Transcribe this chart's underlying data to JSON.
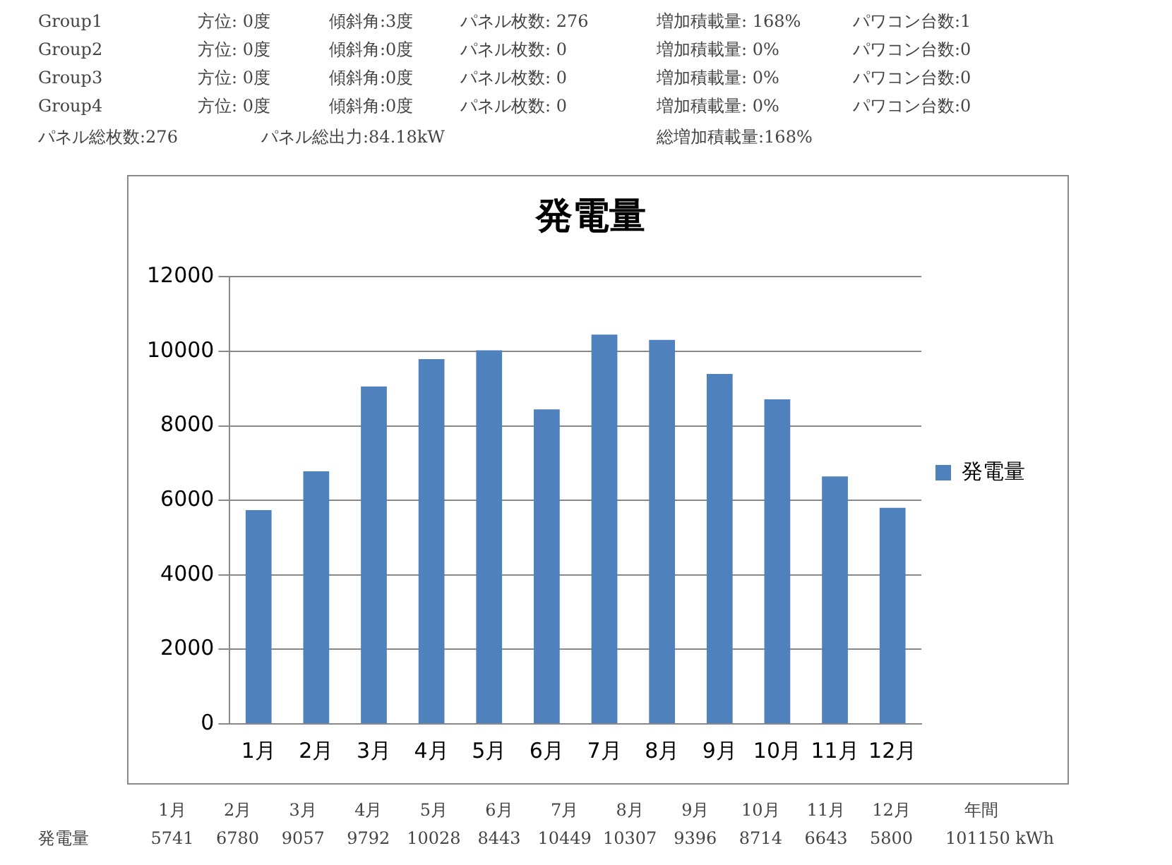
{
  "chart_data": {
    "type": "bar",
    "title": "発電量",
    "categories": [
      "1月",
      "2月",
      "3月",
      "4月",
      "5月",
      "6月",
      "7月",
      "8月",
      "9月",
      "10月",
      "11月",
      "12月"
    ],
    "series": [
      {
        "name": "発電量",
        "color": "#4f81bd",
        "values": [
          5741,
          6780,
          9057,
          9792,
          10028,
          8443,
          10449,
          10307,
          9396,
          8714,
          6643,
          5800
        ]
      }
    ],
    "ylim": [
      0,
      12000
    ],
    "yticks": [
      0,
      2000,
      4000,
      6000,
      8000,
      10000,
      12000
    ],
    "grid": "y",
    "legend": "right",
    "annotations": [
      "Group1",
      "方位: 0度",
      "傾斜角:3度",
      "パネル枚数: 276",
      "増加積載量: 168%",
      "パワコン台数:1",
      "Group2",
      "方位: 0度",
      "傾斜角:0度",
      "パネル枚数: 0",
      "増加積載量: 0%",
      "パワコン台数:0",
      "Group3",
      "方位: 0度",
      "傾斜角:0度",
      "パネル枚数: 0",
      "増加積載量: 0%",
      "パワコン台数:0",
      "Group4",
      "方位: 0度",
      "傾斜角:0度",
      "パネル枚数: 0",
      "増加積載量: 0%",
      "パワコン台数:0",
      "パネル総枚数:276",
      "パネル総出力:84.18kW",
      "総増加積載量:168%",
      "年間",
      "101150 kWh",
      "5741",
      "6780",
      "9057",
      "9792",
      "10028",
      "8443",
      "10449",
      "10307",
      "9396",
      "8714",
      "6643",
      "5800"
    ]
  }
}
